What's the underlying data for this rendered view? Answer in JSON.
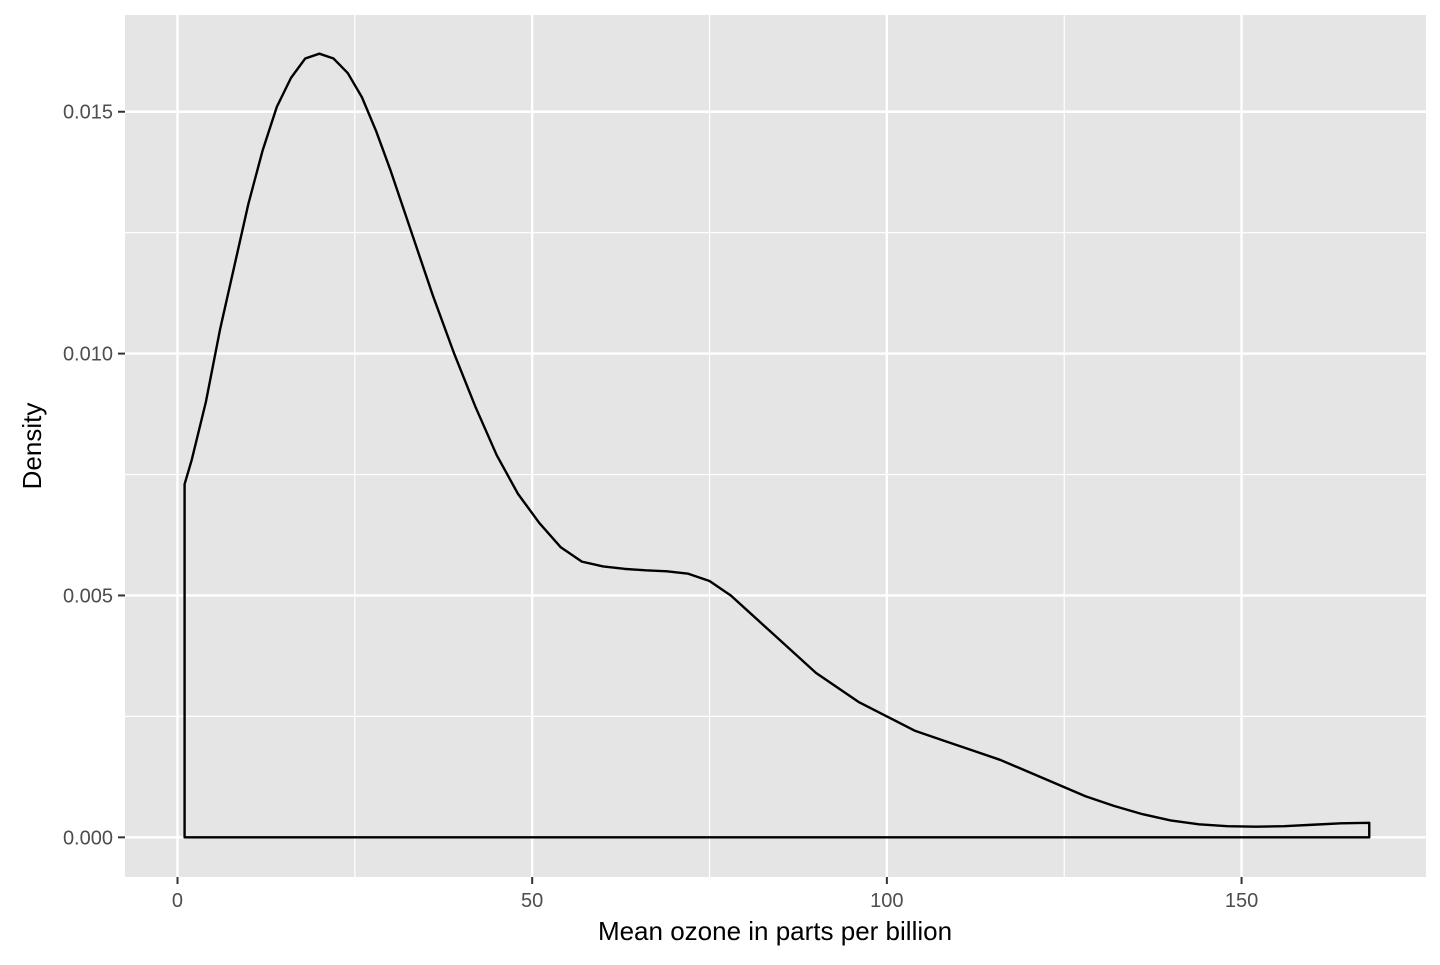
{
  "chart_data": {
    "type": "area",
    "title": "",
    "xlabel": "Mean ozone in parts per billion",
    "ylabel": "Density",
    "xlim": [
      -7.4,
      176.0
    ],
    "ylim": [
      -0.00082,
      0.017
    ],
    "x_ticks": [
      0,
      50,
      100,
      150
    ],
    "x_tick_labels": [
      "0",
      "50",
      "100",
      "150"
    ],
    "y_ticks": [
      0.0,
      0.005,
      0.01,
      0.015
    ],
    "y_tick_labels": [
      "0.000",
      "0.005",
      "0.010",
      "0.015"
    ],
    "x_minor_ticks": [
      25,
      75,
      125
    ],
    "y_minor_ticks": [
      0.0025,
      0.0075,
      0.0125
    ],
    "grid": true,
    "legend": "none",
    "colors": {
      "panel_background": "#e5e5e5",
      "grid_line": "#ffffff",
      "curve_outline": "#000000",
      "curve_fill": "none",
      "tick_label": "#4d4d4d",
      "tick_mark": "#333333"
    },
    "series": [
      {
        "x": [
          1,
          2,
          4,
          6,
          8,
          10,
          12,
          14,
          16,
          18,
          20,
          22,
          24,
          26,
          28,
          30,
          33,
          36,
          39,
          42,
          45,
          48,
          51,
          54,
          57,
          60,
          63,
          66,
          69,
          72,
          75,
          78,
          81,
          84,
          87,
          90,
          93,
          96,
          100,
          104,
          108,
          112,
          116,
          120,
          124,
          128,
          132,
          136,
          140,
          144,
          148,
          152,
          156,
          160,
          164,
          168
        ],
        "y": [
          0.0073,
          0.0078,
          0.009,
          0.0105,
          0.0118,
          0.0131,
          0.0142,
          0.0151,
          0.0157,
          0.0161,
          0.0162,
          0.0161,
          0.0158,
          0.0153,
          0.0146,
          0.0138,
          0.0125,
          0.0112,
          0.01,
          0.0089,
          0.0079,
          0.0071,
          0.0065,
          0.006,
          0.0057,
          0.0056,
          0.00555,
          0.00552,
          0.0055,
          0.00545,
          0.0053,
          0.005,
          0.0046,
          0.0042,
          0.0038,
          0.0034,
          0.0031,
          0.0028,
          0.0025,
          0.0022,
          0.002,
          0.0018,
          0.0016,
          0.00135,
          0.0011,
          0.00085,
          0.00065,
          0.00048,
          0.00035,
          0.00027,
          0.00023,
          0.00022,
          0.00023,
          0.00026,
          0.00029,
          0.0003
        ]
      }
    ]
  }
}
